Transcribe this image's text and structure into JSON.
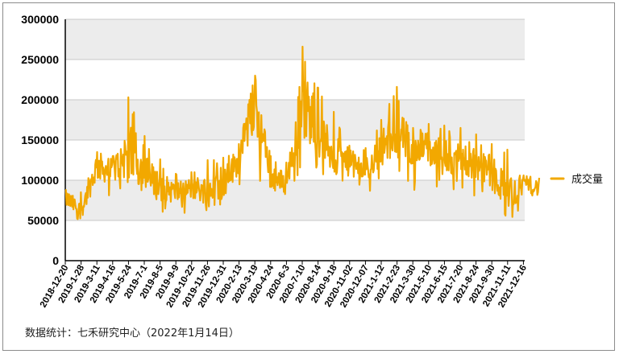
{
  "source_note": "数据统计：七禾研究中心（2022年1月14日）",
  "colors": {
    "series": "#F2A800",
    "band": "#ececec",
    "grid": "#c8c8c8",
    "axis": "#000000"
  },
  "chart_data": {
    "type": "line",
    "title": "",
    "xlabel": "",
    "ylabel": "",
    "ylim": [
      0,
      300000
    ],
    "yticks": [
      0,
      50000,
      100000,
      150000,
      200000,
      250000,
      300000
    ],
    "ytick_labels": [
      "0",
      "50000",
      "100000",
      "150000",
      "200000",
      "250000",
      "300000"
    ],
    "grid": true,
    "legend_position": "right",
    "x_tick_labels": [
      "2018-12-20",
      "2019-1-28",
      "2019-3-11",
      "2019-4-16",
      "2019-5-24",
      "2019-7-1",
      "2019-8-5",
      "2019-9-9",
      "2019-10-22",
      "2019-11-26",
      "2019-12-31",
      "2020-2-13",
      "2020-3-19",
      "2020-4-24",
      "2020-6-3",
      "2020-7-10",
      "2020-8-14",
      "2020-9-18",
      "2020-11-02",
      "2020-12-07",
      "2021-1-12",
      "2021-2-23",
      "2021-3-30",
      "2021-5-10",
      "2021-6-15",
      "2021-7-20",
      "2021-8-24",
      "2021-9-30",
      "2021-11-11",
      "2021-12-16"
    ],
    "series": [
      {
        "name": "成交量",
        "x": [
          "2018-12-20",
          "2019-1-28",
          "2019-3-11",
          "2019-4-16",
          "2019-5-24",
          "2019-7-1",
          "2019-8-5",
          "2019-9-9",
          "2019-10-22",
          "2019-11-26",
          "2019-12-31",
          "2020-2-13",
          "2020-3-19",
          "2020-4-24",
          "2020-6-3",
          "2020-7-10",
          "2020-8-14",
          "2020-9-18",
          "2020-11-02",
          "2020-12-07",
          "2021-1-12",
          "2021-2-23",
          "2021-3-30",
          "2021-5-10",
          "2021-6-15",
          "2021-7-20",
          "2021-8-24",
          "2021-9-30",
          "2021-11-11",
          "2021-12-16",
          "2022-1-14"
        ],
        "values": [
          78000,
          62000,
          118000,
          110000,
          138000,
          108000,
          92000,
          85000,
          90000,
          88000,
          95000,
          128000,
          200000,
          105000,
          95000,
          200000,
          160000,
          130000,
          122000,
          110000,
          140000,
          160000,
          140000,
          138000,
          125000,
          128000,
          118000,
          112000,
          82000,
          95000,
          90000
        ],
        "peak_values": [
          88000,
          85000,
          135000,
          130000,
          203000,
          155000,
          126000,
          108000,
          110000,
          125000,
          128000,
          145000,
          230000,
          130000,
          122000,
          266000,
          215000,
          185000,
          143000,
          140000,
          175000,
          216000,
          165000,
          170000,
          168000,
          165000,
          157000,
          145000,
          138000,
          106000,
          103000
        ],
        "trough_values": [
          47000,
          46000,
          68000,
          73000,
          78000,
          65000,
          60000,
          60000,
          58000,
          57000,
          66000,
          75000,
          95000,
          68000,
          70000,
          105000,
          108000,
          92000,
          80000,
          82000,
          95000,
          102000,
          88000,
          85000,
          80000,
          85000,
          80000,
          75000,
          50000,
          60000,
          65000
        ]
      }
    ]
  }
}
